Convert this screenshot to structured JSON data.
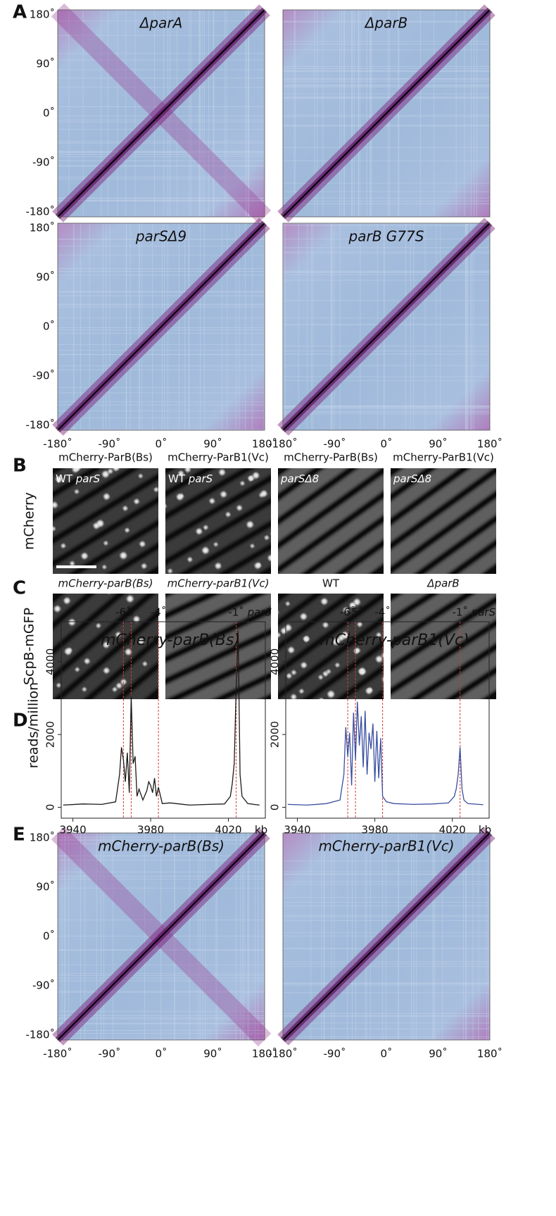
{
  "panel_labels": [
    "A",
    "B",
    "C",
    "D",
    "E"
  ],
  "hic_yticks": [
    "180˚",
    "90˚",
    "0˚",
    "-90˚",
    "-180˚"
  ],
  "hic_xticks": [
    "-180˚",
    "-90˚",
    "0˚",
    "90˚",
    "180˚"
  ],
  "panel_a": {
    "maps": [
      {
        "title": "ΔparA",
        "cross": true
      },
      {
        "title": "ΔparB",
        "cross": false
      },
      {
        "title": "parSΔ9",
        "cross": false
      },
      {
        "title": "parB G77S",
        "cross": false
      }
    ]
  },
  "panel_b": {
    "row_label": "mCherry",
    "columns": [
      {
        "title": "mCherry-ParB(Bs)",
        "inset": {
          "text": "WT",
          "italic": "parS"
        },
        "foci": true
      },
      {
        "title": "mCherry-ParB1(Vc)",
        "inset": {
          "text": "WT",
          "italic": "parS"
        },
        "foci": true
      },
      {
        "title": "mCherry-ParB(Bs)",
        "inset": {
          "italic": "parSΔ8"
        },
        "foci": false
      },
      {
        "title": "mCherry-ParB1(Vc)",
        "inset": {
          "italic": "parSΔ8"
        },
        "foci": false
      }
    ]
  },
  "panel_c": {
    "row_label": "ScpB-mGFP",
    "columns": [
      {
        "title": "mCherry-parB(Bs)",
        "italic": true,
        "foci": true
      },
      {
        "title": "mCherry-parB1(Vc)",
        "italic": true,
        "foci": false
      },
      {
        "title": "WT",
        "italic": false,
        "foci": true
      },
      {
        "title": "ΔparB",
        "italic": true,
        "foci": false
      }
    ]
  },
  "chart_data": [
    {
      "type": "line",
      "title": "mCherry-parB(Bs)",
      "y_label": "reads/million",
      "x_unit": "kb",
      "color": "#1a1a1a",
      "x": [
        3935,
        3945,
        3955,
        3962,
        3964,
        3965,
        3966,
        3967,
        3968,
        3969,
        3970,
        3971,
        3972,
        3973,
        3974,
        3976,
        3978,
        3979,
        3980,
        3981,
        3982,
        3983,
        3984,
        3986,
        3990,
        4000,
        4010,
        4018,
        4021,
        4022,
        4023,
        4024,
        4025,
        4026,
        4027,
        4030,
        4036
      ],
      "values": [
        60,
        90,
        80,
        150,
        900,
        1650,
        1300,
        700,
        1500,
        400,
        3050,
        1200,
        1400,
        300,
        500,
        200,
        450,
        700,
        600,
        400,
        800,
        300,
        550,
        100,
        120,
        60,
        80,
        90,
        300,
        650,
        1200,
        3300,
        4850,
        900,
        300,
        100,
        60
      ],
      "xlim": [
        3934,
        4039
      ],
      "ylim": [
        -300,
        5100
      ],
      "xticks": [
        3940,
        3980,
        4020
      ],
      "yticks": [
        0,
        2000,
        4000
      ],
      "annotations": [
        {
          "label": "-6˚",
          "x": 3966
        },
        {
          "label": "-5˚",
          "x": 3970
        },
        {
          "label": "-4˚",
          "x": 3984
        },
        {
          "label": "-1˚",
          "x": 4024,
          "site": "parS"
        }
      ]
    },
    {
      "type": "line",
      "title": "mCherry-parB1(Vc)",
      "x_unit": "kb",
      "color": "#3a4fa0",
      "x": [
        3935,
        3945,
        3955,
        3962,
        3964,
        3965,
        3966,
        3967,
        3968,
        3969,
        3970,
        3971,
        3972,
        3973,
        3974,
        3975,
        3976,
        3977,
        3978,
        3979,
        3980,
        3981,
        3982,
        3983,
        3984,
        3986,
        3990,
        4000,
        4010,
        4018,
        4021,
        4022,
        4023,
        4024,
        4025,
        4026,
        4028,
        4036
      ],
      "values": [
        80,
        60,
        100,
        200,
        900,
        2200,
        1400,
        2050,
        600,
        2600,
        1300,
        2900,
        1700,
        2500,
        1100,
        2650,
        900,
        2050,
        1600,
        2300,
        700,
        2100,
        800,
        1900,
        300,
        150,
        100,
        80,
        90,
        120,
        300,
        500,
        900,
        1650,
        500,
        200,
        100,
        70
      ],
      "xlim": [
        3934,
        4039
      ],
      "ylim": [
        -300,
        5100
      ],
      "xticks": [
        3940,
        3980,
        4020
      ],
      "yticks": [
        0,
        2000,
        4000
      ],
      "annotations": [
        {
          "label": "-6˚",
          "x": 3966
        },
        {
          "label": "-5˚",
          "x": 3970
        },
        {
          "label": "-4˚",
          "x": 3984
        },
        {
          "label": "-1˚",
          "x": 4024,
          "site": "parS"
        }
      ]
    }
  ],
  "panel_e": {
    "maps": [
      {
        "title": "mCherry-parB(Bs)",
        "cross": true
      },
      {
        "title": "mCherry-parB1(Vc)",
        "cross": false
      }
    ]
  }
}
